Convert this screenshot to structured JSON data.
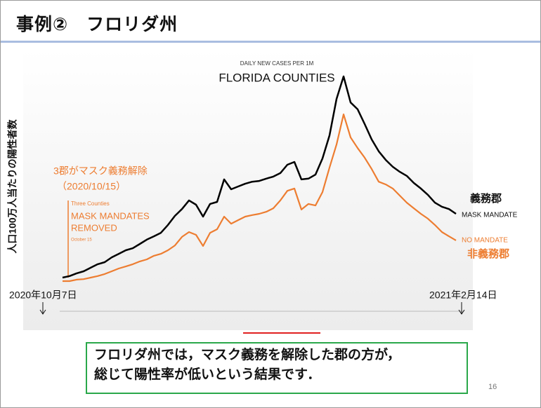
{
  "slide": {
    "title": "事例②　フロリダ州",
    "caption": [
      "フロリダ州では，マスク義務を解除した郡の方が，",
      "総じて陽性率が低いという結果です．"
    ],
    "page_number": "16"
  },
  "chart_data": {
    "type": "line",
    "subtitle": "DAILY NEW CASES PER 1M",
    "title": "FLORIDA COUNTIES",
    "y_label": "人口100万人当たりの陽性者数",
    "ylim": [
      0,
      1000
    ],
    "annotations": [
      "3郡がマスク義務解除",
      "（2020/10/15）",
      "Three Counties",
      "MASK MANDATES",
      "REMOVED",
      "October 15",
      "義務郡",
      "非義務郡",
      "2020年10月7日",
      "2021年2月14日"
    ],
    "series": [
      {
        "name": "MASK MANDATE",
        "color": "#000000",
        "values": [
          133,
          139,
          150,
          158,
          172,
          186,
          194,
          213,
          227,
          241,
          249,
          266,
          283,
          296,
          310,
          341,
          377,
          404,
          438,
          421,
          374,
          424,
          432,
          521,
          482,
          493,
          504,
          512,
          515,
          524,
          532,
          546,
          579,
          590,
          521,
          524,
          540,
          604,
          695,
          839,
          928,
          825,
          798,
          740,
          679,
          632,
          598,
          571,
          551,
          535,
          507,
          485,
          460,
          429,
          413,
          404,
          385
        ]
      },
      {
        "name": "NO MANDATE",
        "color": "#ed7d31",
        "values": [
          119,
          119,
          125,
          127,
          133,
          139,
          147,
          158,
          169,
          177,
          186,
          197,
          205,
          219,
          227,
          241,
          260,
          294,
          313,
          302,
          258,
          310,
          324,
          374,
          346,
          360,
          374,
          380,
          385,
          393,
          407,
          438,
          476,
          485,
          402,
          424,
          418,
          471,
          568,
          659,
          778,
          687,
          645,
          607,
          562,
          512,
          501,
          485,
          457,
          429,
          407,
          385,
          366,
          341,
          313,
          296,
          280
        ]
      }
    ]
  }
}
